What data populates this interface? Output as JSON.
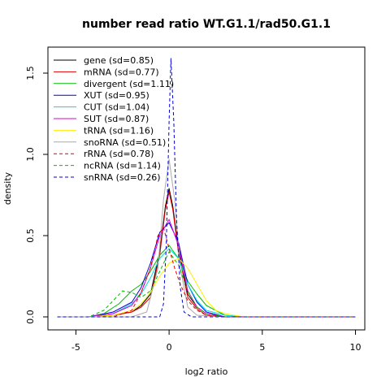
{
  "chart_data": {
    "type": "line",
    "title": "number read ratio WT.G1.1/rad50.G1.1",
    "xlabel": "log2 ratio",
    "ylabel": "density",
    "xlim": [
      -6.5,
      10.5
    ],
    "ylim": [
      -0.08,
      1.66
    ],
    "xticks": [
      -5,
      0,
      5,
      10
    ],
    "yticks": [
      0.0,
      0.5,
      1.0,
      1.5
    ],
    "xtick_labels": [
      "-5",
      "0",
      "5",
      "10"
    ],
    "ytick_labels": [
      "0.0",
      "0.5",
      "1.0",
      "1.5"
    ],
    "grid": false,
    "legend_position": "top-left",
    "series": [
      {
        "name": "gene (sd=0.85)",
        "color": "#000000",
        "dash": "solid",
        "x": [
          -6.0,
          -4.3,
          -3.0,
          -2.0,
          -1.5,
          -1.0,
          -0.5,
          -0.2,
          0.0,
          0.2,
          0.5,
          1.0,
          1.5,
          2.0,
          3.0,
          4.0,
          6.0,
          10.0
        ],
        "y": [
          0.0,
          0.0,
          0.01,
          0.03,
          0.07,
          0.14,
          0.4,
          0.68,
          0.79,
          0.68,
          0.42,
          0.14,
          0.06,
          0.02,
          0.0,
          0.0,
          0.0,
          0.0
        ]
      },
      {
        "name": "mRNA (sd=0.77)",
        "color": "#dd0000",
        "dash": "solid",
        "x": [
          -6.0,
          -4.3,
          -3.0,
          -2.0,
          -1.5,
          -1.0,
          -0.5,
          -0.2,
          0.0,
          0.2,
          0.5,
          1.0,
          1.5,
          2.0,
          3.0,
          4.0,
          6.0,
          10.0
        ],
        "y": [
          0.0,
          0.0,
          0.01,
          0.03,
          0.06,
          0.12,
          0.38,
          0.66,
          0.77,
          0.66,
          0.4,
          0.12,
          0.05,
          0.01,
          0.0,
          0.0,
          0.0,
          0.0
        ]
      },
      {
        "name": "divergent (sd=1.11)",
        "color": "#00bb00",
        "dash": "solid",
        "x": [
          -6.0,
          -4.3,
          -3.5,
          -2.7,
          -2.0,
          -1.5,
          -1.0,
          -0.5,
          0.0,
          0.5,
          1.0,
          1.5,
          2.0,
          3.0,
          4.0,
          6.0,
          10.0
        ],
        "y": [
          0.0,
          0.0,
          0.02,
          0.08,
          0.16,
          0.2,
          0.28,
          0.38,
          0.44,
          0.36,
          0.22,
          0.14,
          0.07,
          0.01,
          0.0,
          0.0,
          0.0
        ]
      },
      {
        "name": "XUT (sd=0.95)",
        "color": "#0000dd",
        "dash": "solid",
        "x": [
          -6.0,
          -4.3,
          -3.0,
          -2.0,
          -1.5,
          -1.0,
          -0.5,
          0.0,
          0.5,
          1.0,
          1.5,
          2.0,
          3.0,
          4.0,
          6.0,
          10.0
        ],
        "y": [
          0.0,
          0.0,
          0.03,
          0.09,
          0.18,
          0.33,
          0.52,
          0.58,
          0.46,
          0.2,
          0.09,
          0.03,
          0.0,
          0.0,
          0.0,
          0.0
        ]
      },
      {
        "name": "CUT (sd=1.04)",
        "color": "#00dddd",
        "dash": "solid",
        "x": [
          -6.0,
          -4.3,
          -3.0,
          -2.0,
          -1.5,
          -1.0,
          -0.5,
          0.0,
          0.5,
          1.0,
          1.5,
          2.0,
          3.0,
          4.0,
          6.0,
          10.0
        ],
        "y": [
          0.0,
          0.0,
          0.02,
          0.08,
          0.14,
          0.24,
          0.36,
          0.42,
          0.36,
          0.2,
          0.1,
          0.04,
          0.01,
          0.0,
          0.0,
          0.0
        ]
      },
      {
        "name": "SUT (sd=0.87)",
        "color": "#dd00dd",
        "dash": "solid",
        "x": [
          -6.0,
          -4.3,
          -3.0,
          -2.0,
          -1.5,
          -1.0,
          -0.5,
          0.0,
          0.5,
          1.0,
          1.5,
          2.0,
          3.0,
          4.0,
          6.0,
          10.0
        ],
        "y": [
          0.0,
          0.0,
          0.02,
          0.07,
          0.15,
          0.3,
          0.5,
          0.6,
          0.44,
          0.16,
          0.06,
          0.02,
          0.0,
          0.0,
          0.0,
          0.0
        ]
      },
      {
        "name": "tRNA (sd=1.16)",
        "color": "#ffee00",
        "dash": "solid",
        "x": [
          -6.0,
          -4.3,
          -3.0,
          -2.0,
          -1.5,
          -1.0,
          -0.5,
          0.0,
          0.5,
          1.0,
          1.5,
          2.0,
          2.5,
          3.0,
          4.0,
          6.0,
          10.0
        ],
        "y": [
          0.0,
          0.0,
          0.01,
          0.04,
          0.08,
          0.15,
          0.25,
          0.33,
          0.36,
          0.3,
          0.2,
          0.1,
          0.04,
          0.02,
          0.0,
          0.0,
          0.0
        ]
      },
      {
        "name": "snoRNA (sd=0.51)",
        "color": "#aaaaaa",
        "dash": "solid",
        "x": [
          -6.0,
          -4.3,
          -2.0,
          -1.2,
          -0.6,
          -0.3,
          0.0,
          0.3,
          0.6,
          1.0,
          1.5,
          3.0,
          6.0,
          10.0
        ],
        "y": [
          0.0,
          0.0,
          0.0,
          0.03,
          0.3,
          0.72,
          0.97,
          0.72,
          0.3,
          0.06,
          0.01,
          0.0,
          0.0,
          0.0
        ]
      },
      {
        "name": "rRNA (sd=0.78)",
        "color": "#dd0000",
        "dash": "dashed",
        "x": [
          -6.0,
          -4.3,
          -3.0,
          -2.0,
          -1.5,
          -1.0,
          -0.6,
          -0.3,
          0.0,
          0.3,
          0.6,
          1.0,
          1.5,
          2.0,
          3.0,
          4.0,
          6.0,
          10.0
        ],
        "y": [
          0.0,
          0.0,
          0.0,
          0.04,
          0.15,
          0.3,
          0.5,
          0.55,
          0.42,
          0.3,
          0.2,
          0.1,
          0.04,
          0.01,
          0.0,
          0.0,
          0.0,
          0.0
        ]
      },
      {
        "name": "ncRNA (sd=1.14)",
        "color": "#00bb00",
        "dash": "dashed",
        "x": [
          -6.0,
          -4.3,
          -3.5,
          -3.0,
          -2.5,
          -2.0,
          -1.5,
          -1.0,
          -0.5,
          0.0,
          0.5,
          1.0,
          1.5,
          2.0,
          3.0,
          4.0,
          6.0,
          10.0
        ],
        "y": [
          0.0,
          0.0,
          0.04,
          0.1,
          0.16,
          0.15,
          0.12,
          0.16,
          0.28,
          0.4,
          0.32,
          0.16,
          0.06,
          0.02,
          0.0,
          0.0,
          0.0,
          0.0
        ]
      },
      {
        "name": "snRNA (sd=0.26)",
        "color": "#0000dd",
        "dash": "dashed",
        "x": [
          -6.0,
          -4.3,
          -1.0,
          -0.5,
          -0.3,
          -0.15,
          0.0,
          0.1,
          0.25,
          0.4,
          0.6,
          0.8,
          1.2,
          3.0,
          6.0,
          10.0
        ],
        "y": [
          0.0,
          0.0,
          0.0,
          0.0,
          0.08,
          0.45,
          1.2,
          1.59,
          1.2,
          0.6,
          0.18,
          0.03,
          0.0,
          0.0,
          0.0,
          0.0
        ]
      }
    ]
  }
}
